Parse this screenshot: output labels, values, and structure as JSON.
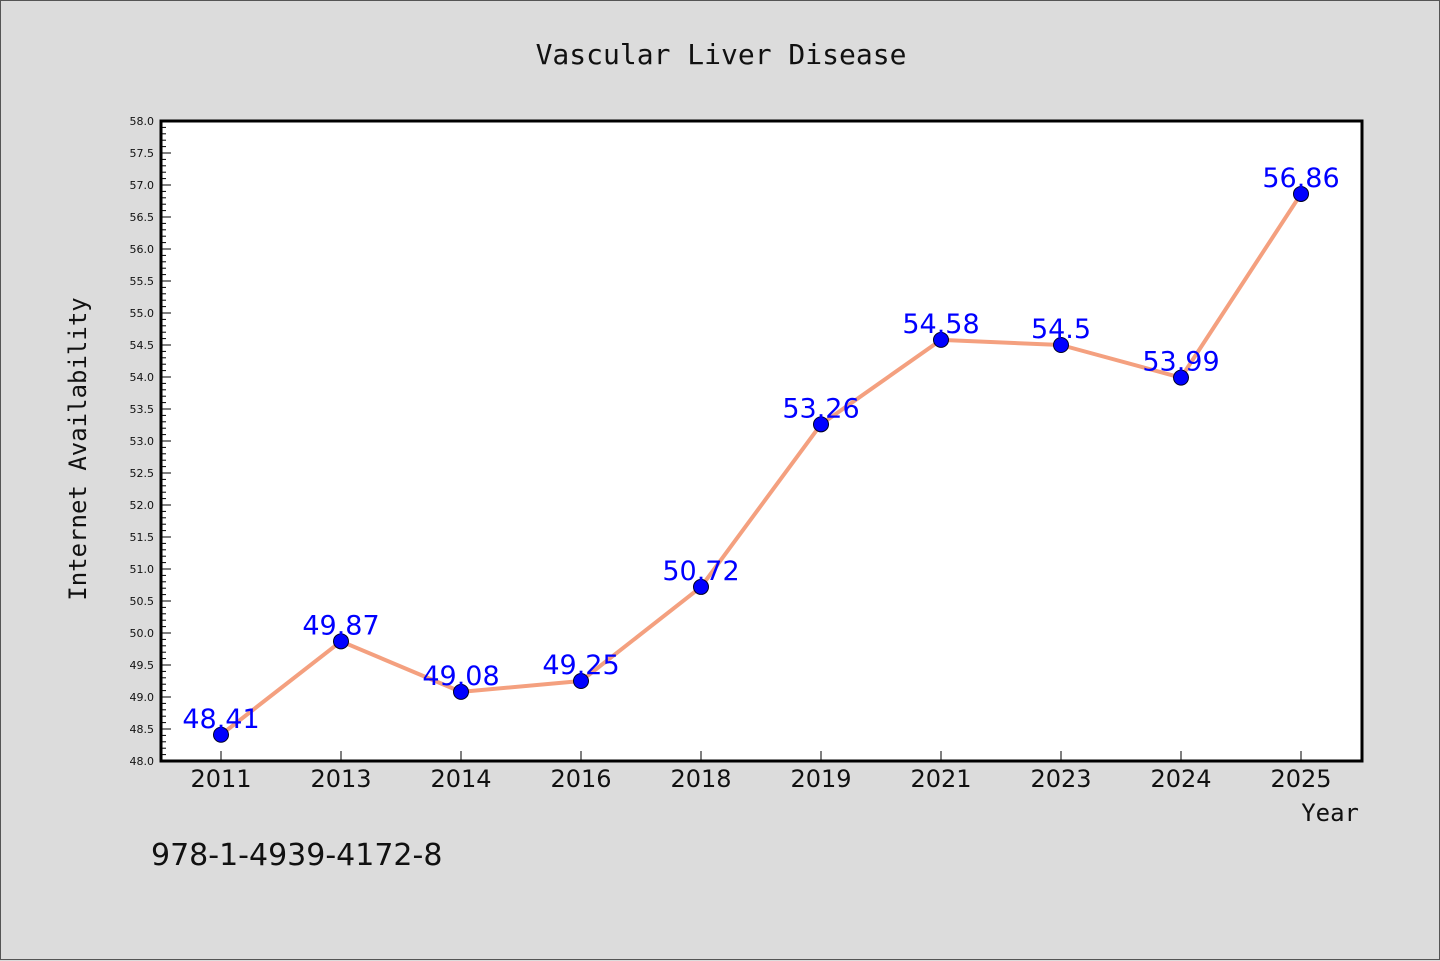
{
  "colors": {
    "background": "#dcdcdc",
    "plot_bg": "#ffffff",
    "line": "#f4a07f",
    "marker": "#0000ff",
    "label": "#0000ff"
  },
  "footer_text": "978-1-4939-4172-8",
  "chart_data": {
    "type": "line",
    "title": "Vascular Liver Disease",
    "xlabel": "Year",
    "ylabel": "Internet Availability",
    "categories": [
      "2011",
      "2013",
      "2014",
      "2016",
      "2018",
      "2019",
      "2021",
      "2023",
      "2024",
      "2025"
    ],
    "values": [
      48.41,
      49.87,
      49.08,
      49.25,
      50.72,
      53.26,
      54.58,
      54.5,
      53.99,
      56.86
    ],
    "data_labels": [
      "48.41",
      "49.87",
      "49.08",
      "49.25",
      "50.72",
      "53.26",
      "54.58",
      "54.5",
      "53.99",
      "56.86"
    ],
    "ylim": [
      48.0,
      58.0
    ],
    "yticks": [
      "48.0",
      "48.5",
      "49.0",
      "49.5",
      "50.0",
      "50.5",
      "51.0",
      "51.5",
      "52.0",
      "52.5",
      "53.0",
      "53.5",
      "54.0",
      "54.5",
      "55.0",
      "55.5",
      "56.0",
      "56.5",
      "57.0",
      "57.5",
      "58.0"
    ],
    "grid": false,
    "legend": "none"
  }
}
